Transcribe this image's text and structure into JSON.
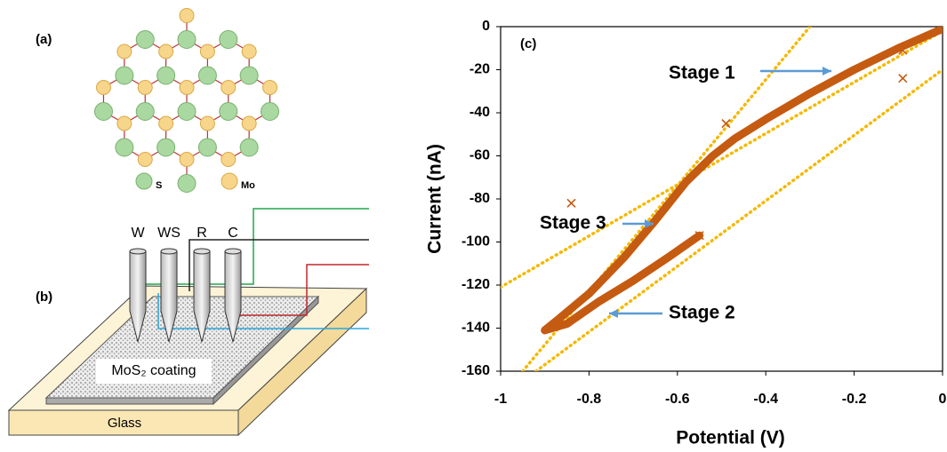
{
  "panels": {
    "a": {
      "label": "(a)",
      "legend": [
        "S",
        "Mo"
      ]
    },
    "b": {
      "label": "(b)",
      "electrodes": [
        "W",
        "WS",
        "R",
        "C"
      ],
      "coating": "MoS₂ coating",
      "substrate": "Glass"
    }
  },
  "chart_data": {
    "type": "line",
    "panel_label": "(c)",
    "x_label": "Potential (V)",
    "y_label": "Current (nA)",
    "xlim": [
      -1,
      0
    ],
    "ylim": [
      -160,
      0
    ],
    "xticks": [
      -1,
      -0.8,
      -0.6,
      -0.4,
      -0.2,
      0
    ],
    "yticks": [
      -160,
      -140,
      -120,
      -100,
      -80,
      -60,
      -40,
      -20,
      0
    ],
    "series": [
      {
        "color": "#c55a11",
        "width": 9,
        "x": [
          0,
          -0.1,
          -0.2,
          -0.3,
          -0.4,
          -0.47,
          -0.52,
          -0.58,
          -0.65,
          -0.72,
          -0.8,
          -0.87,
          -0.9,
          -0.85,
          -0.78,
          -0.7,
          -0.62,
          -0.55
        ],
        "values": [
          -1,
          -10,
          -20,
          -31,
          -43,
          -52,
          -60,
          -72,
          -90,
          -107,
          -124,
          -136,
          -141,
          -138,
          -128,
          -118,
          -107,
          -97
        ]
      },
      {
        "color": "#f5b800",
        "dash": "dotted",
        "x": [
          -1,
          0
        ],
        "values": [
          -121,
          -2
        ]
      },
      {
        "color": "#f5b800",
        "dash": "dotted",
        "x": [
          -0.95,
          -0.3
        ],
        "values": [
          -160,
          0
        ]
      },
      {
        "color": "#f5b800",
        "dash": "dotted",
        "x": [
          -0.92,
          0
        ],
        "values": [
          -160,
          -20
        ]
      },
      {
        "color": "#c55a11",
        "marker": "x",
        "x": [
          -0.84,
          -0.09,
          -0.09,
          -0.49,
          -0.55
        ],
        "values": [
          -82,
          -11,
          -24,
          -45,
          -97
        ]
      }
    ],
    "annotations": [
      "Stage 1",
      "Stage 2",
      "Stage 3"
    ]
  }
}
